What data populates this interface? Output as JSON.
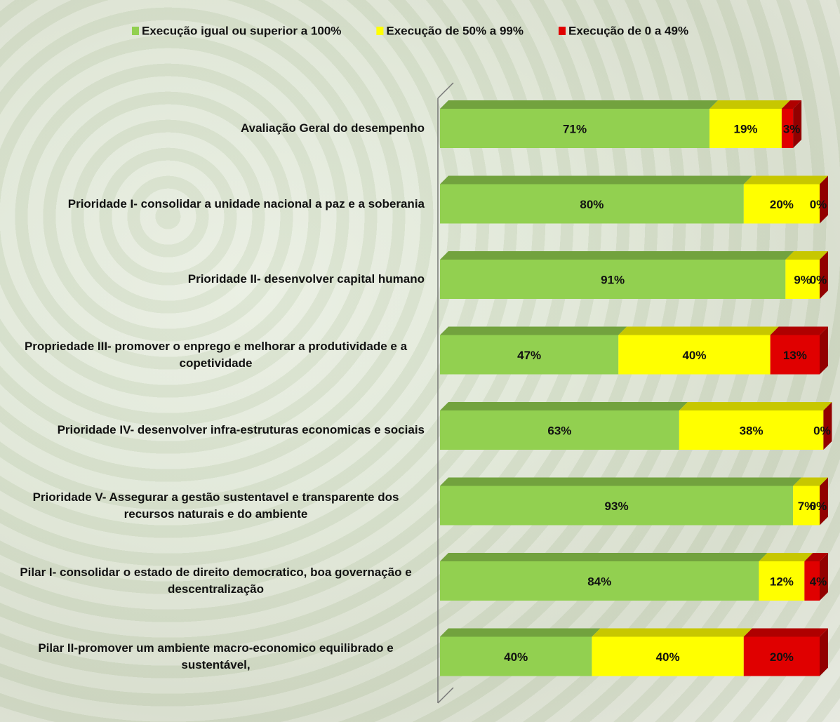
{
  "chart_data": {
    "type": "stacked-bar-3d",
    "categories": [
      "Avaliação Geral do desempenho",
      "Prioridade I- consolidar a unidade nacional a paz e a soberania",
      "Prioridade II- desenvolver capital humano",
      "Propriedade III- promover o enprego e melhorar a produtividade e a copetividade",
      "Prioridade IV- desenvolver infra-estruturas economicas e sociais",
      "Prioridade V- Assegurar a gestão sustentavel e transparente dos recursos naturais e do ambiente",
      "Pilar I- consolidar o estado de direito democratico, boa governação e descentralização",
      "Pilar II-promover um ambiente macro-economico equilibrado e sustentável,"
    ],
    "xlim": [
      0,
      100
    ],
    "series": [
      {
        "name": "Execução igual ou superior a 100%",
        "color": "#92d050",
        "values": [
          71,
          80,
          91,
          47,
          63,
          93,
          84,
          40
        ],
        "value_labels": [
          "71%",
          "80%",
          "91%",
          "47%",
          "63%",
          "93%",
          "84%",
          "40%"
        ]
      },
      {
        "name": "Execução de 50% a 99%",
        "color": "#ffff00",
        "values": [
          19,
          20,
          9,
          40,
          38,
          7,
          12,
          40
        ],
        "value_labels": [
          "19%",
          "20%",
          "9%",
          "40%",
          "38%",
          "7%",
          "12%",
          "40%"
        ]
      },
      {
        "name": "Execução de 0 a 49%",
        "color": "#e00000",
        "values": [
          3,
          0,
          0,
          13,
          0,
          0,
          4,
          20
        ],
        "value_labels": [
          "3%",
          "0%",
          "0%",
          "13%",
          "0%",
          "0%",
          "4%",
          "20%"
        ]
      }
    ]
  }
}
